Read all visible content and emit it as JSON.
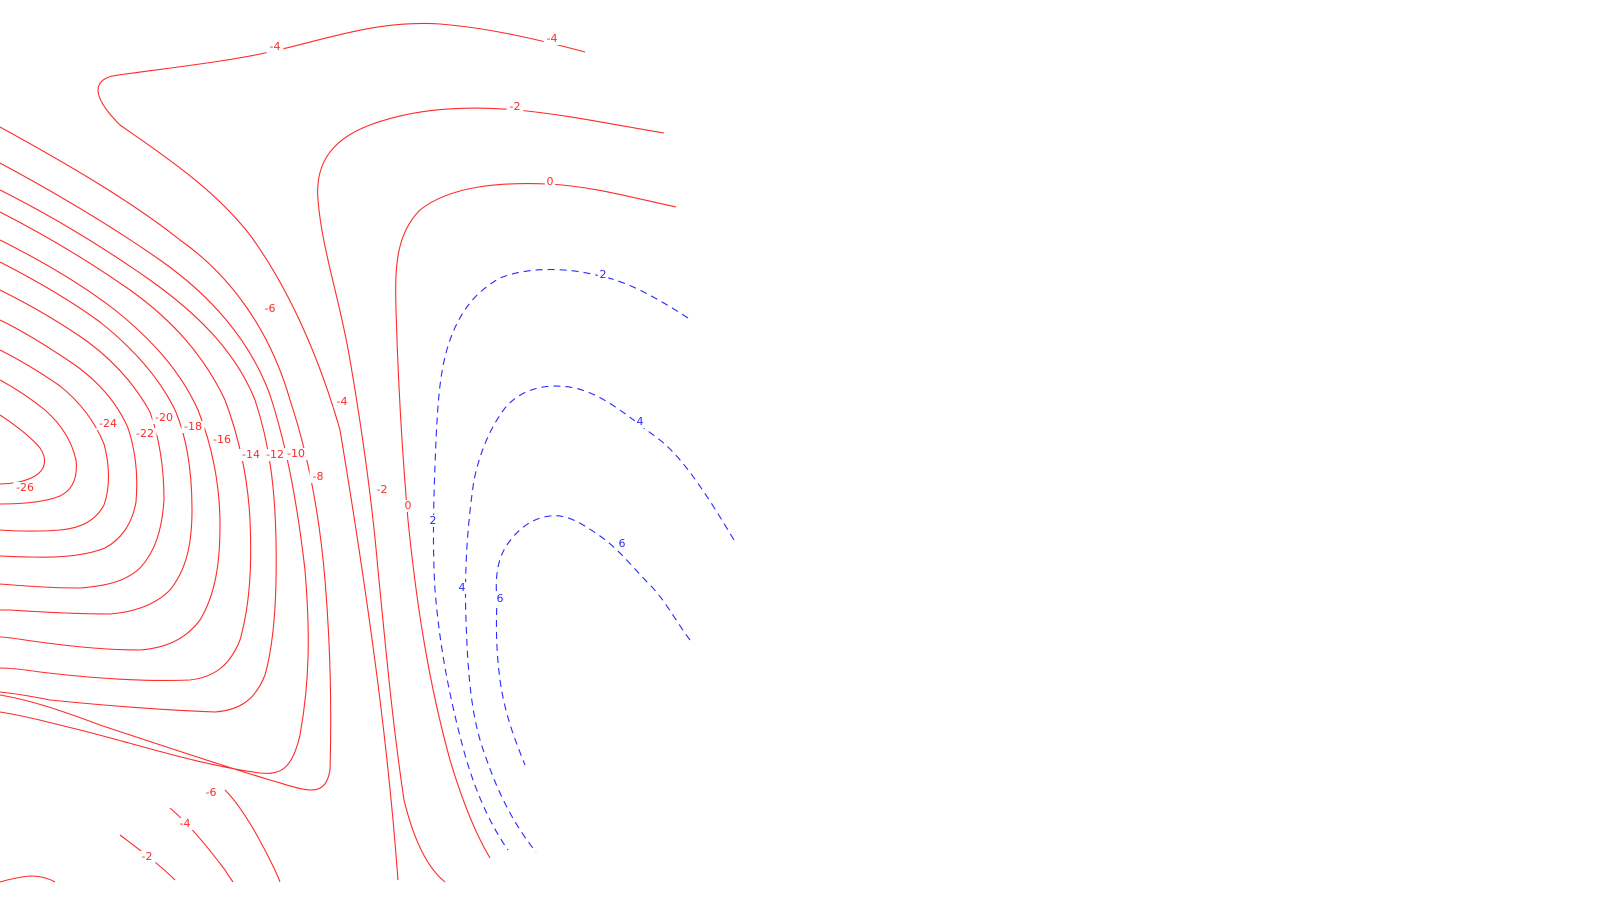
{
  "chart_data": {
    "type": "contour",
    "title": "",
    "xlabel": "",
    "ylabel": "",
    "colors": {
      "negative": "#ff2a2a",
      "positive": "#2a2aff"
    },
    "line_styles": {
      "negative": "solid",
      "positive": "dashed"
    },
    "levels": [
      -26,
      -24,
      -22,
      -20,
      -18,
      -16,
      -14,
      -12,
      -10,
      -8,
      -6,
      -4,
      -2,
      0,
      2,
      4,
      6
    ],
    "labels": [
      {
        "text": "-4"
      },
      {
        "text": "-4"
      },
      {
        "text": "-2"
      },
      {
        "text": "0"
      },
      {
        "text": "2"
      },
      {
        "text": "4"
      },
      {
        "text": "6"
      },
      {
        "text": "-6"
      },
      {
        "text": "-4"
      },
      {
        "text": "-2"
      },
      {
        "text": "0"
      },
      {
        "text": "2"
      },
      {
        "text": "4"
      },
      {
        "text": "6"
      },
      {
        "text": "-26"
      },
      {
        "text": "-24"
      },
      {
        "text": "-22"
      },
      {
        "text": "-20"
      },
      {
        "text": "-18"
      },
      {
        "text": "-16"
      },
      {
        "text": "-14"
      },
      {
        "text": "-12"
      },
      {
        "text": "-10"
      },
      {
        "text": "-8"
      },
      {
        "text": "-6"
      },
      {
        "text": "-4"
      },
      {
        "text": "-2"
      }
    ]
  }
}
